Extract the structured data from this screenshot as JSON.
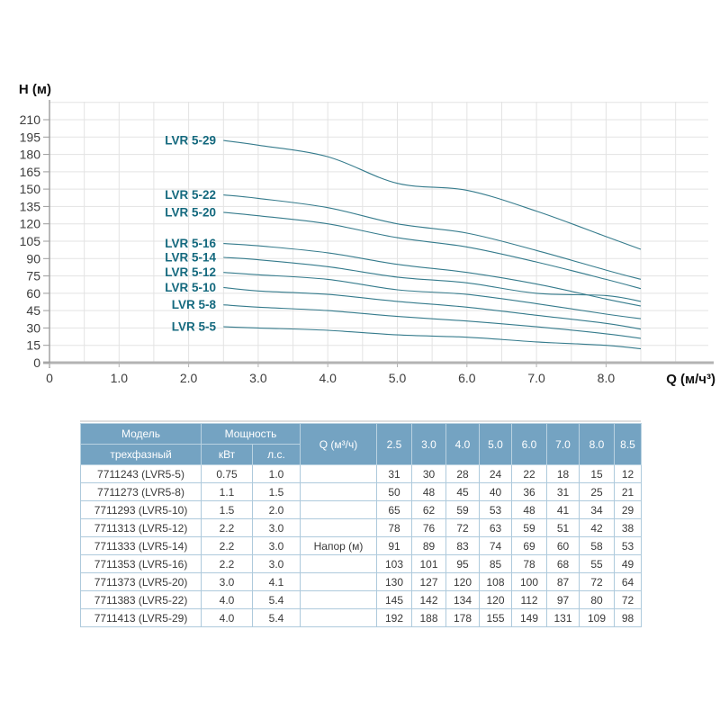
{
  "chart_data": {
    "type": "line",
    "title": "",
    "xlabel": "Q (м/ч³)",
    "ylabel": "H (м)",
    "x": [
      2.5,
      3.0,
      4.0,
      5.0,
      6.0,
      7.0,
      8.0,
      8.5
    ],
    "series": [
      {
        "name": "LVR 5-29",
        "values": [
          192,
          188,
          178,
          155,
          149,
          131,
          109,
          98
        ]
      },
      {
        "name": "LVR 5-22",
        "values": [
          145,
          142,
          134,
          120,
          112,
          97,
          80,
          72
        ]
      },
      {
        "name": "LVR 5-20",
        "values": [
          130,
          127,
          120,
          108,
          100,
          87,
          72,
          64
        ]
      },
      {
        "name": "LVR 5-16",
        "values": [
          103,
          101,
          95,
          85,
          78,
          68,
          55,
          49
        ]
      },
      {
        "name": "LVR 5-14",
        "values": [
          91,
          89,
          83,
          74,
          69,
          60,
          58,
          53
        ]
      },
      {
        "name": "LVR 5-12",
        "values": [
          78,
          76,
          72,
          63,
          59,
          51,
          42,
          38
        ]
      },
      {
        "name": "LVR 5-10",
        "values": [
          65,
          62,
          59,
          53,
          48,
          41,
          34,
          29
        ]
      },
      {
        "name": "LVR 5-8",
        "values": [
          50,
          48,
          45,
          40,
          36,
          31,
          25,
          21
        ]
      },
      {
        "name": "LVR 5-5",
        "values": [
          31,
          30,
          28,
          24,
          22,
          18,
          15,
          12
        ]
      }
    ],
    "xlim": [
      0,
      9.0
    ],
    "ylim": [
      0,
      225
    ],
    "x_ticks": [
      "0",
      "1.0",
      "2.0",
      "3.0",
      "4.0",
      "5.0",
      "6.0",
      "7.0",
      "8.0"
    ],
    "y_ticks": [
      0,
      15,
      30,
      45,
      60,
      75,
      90,
      105,
      120,
      135,
      150,
      165,
      180,
      195,
      210
    ],
    "grid": true,
    "legend_position": "inline-labels-left-of-curves"
  },
  "table": {
    "header": {
      "model_top": "Модель",
      "model_bottom": "трехфазный",
      "power": "Мощность",
      "kw": "кВт",
      "hp": "л.с.",
      "q": "Q (м³/ч)",
      "flow_cols": [
        "2.5",
        "3.0",
        "4.0",
        "5.0",
        "6.0",
        "7.0",
        "8.0",
        "8.5"
      ]
    },
    "q_row_label": "Напор (м)",
    "napor_row_index": 4,
    "rows": [
      {
        "model": "7711243 (LVR5-5)",
        "kw": "0.75",
        "hp": "1.0",
        "values": [
          31,
          30,
          28,
          24,
          22,
          18,
          15,
          12
        ]
      },
      {
        "model": "7711273 (LVR5-8)",
        "kw": "1.1",
        "hp": "1.5",
        "values": [
          50,
          48,
          45,
          40,
          36,
          31,
          25,
          21
        ]
      },
      {
        "model": "7711293 (LVR5-10)",
        "kw": "1.5",
        "hp": "2.0",
        "values": [
          65,
          62,
          59,
          53,
          48,
          41,
          34,
          29
        ]
      },
      {
        "model": "7711313 (LVR5-12)",
        "kw": "2.2",
        "hp": "3.0",
        "values": [
          78,
          76,
          72,
          63,
          59,
          51,
          42,
          38
        ]
      },
      {
        "model": "7711333 (LVR5-14)",
        "kw": "2.2",
        "hp": "3.0",
        "values": [
          91,
          89,
          83,
          74,
          69,
          60,
          58,
          53
        ]
      },
      {
        "model": "7711353 (LVR5-16)",
        "kw": "2.2",
        "hp": "3.0",
        "values": [
          103,
          101,
          95,
          85,
          78,
          68,
          55,
          49
        ]
      },
      {
        "model": "7711373 (LVR5-20)",
        "kw": "3.0",
        "hp": "4.1",
        "values": [
          130,
          127,
          120,
          108,
          100,
          87,
          72,
          64
        ]
      },
      {
        "model": "7711383 (LVR5-22)",
        "kw": "4.0",
        "hp": "5.4",
        "values": [
          145,
          142,
          134,
          120,
          112,
          97,
          80,
          72
        ]
      },
      {
        "model": "7711413 (LVR5-29)",
        "kw": "4.0",
        "hp": "5.4",
        "values": [
          192,
          188,
          178,
          155,
          149,
          131,
          109,
          98
        ]
      }
    ]
  },
  "colors": {
    "curve": "#357b8c",
    "curve_label": "#14697e",
    "grid": "#e3e3e3",
    "y_axis": "#9b9b9b",
    "x_axis": "#b3b3b3",
    "tick_text": "#3c3c3c",
    "axis_title": "#111111",
    "table_header_bg": "#74a3c2",
    "table_header_text": "#ffffff",
    "table_border": "#aecadc",
    "table_text": "#3a3a3a"
  }
}
